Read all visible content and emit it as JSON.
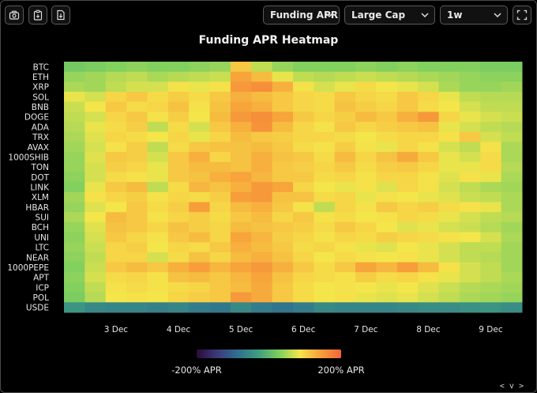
{
  "toolbar": {
    "screenshot_label": "camera-icon",
    "copy_label": "clipboard-icon",
    "export_label": "download-file-icon",
    "metric_select": "Funding APR",
    "group_select": "Large Cap",
    "range_select": "1w",
    "fullscreen_label": "expand-icon"
  },
  "nav_hint": "< v >",
  "colors": {
    "background": "#000000",
    "scale": [
      "#2d0b3a",
      "#3b3a7a",
      "#2f6f8f",
      "#3f9f7f",
      "#7fcf5f",
      "#f5e64a",
      "#f7a03a",
      "#f2653a"
    ]
  },
  "chart_data": {
    "type": "heatmap",
    "title": "Funding APR Heatmap",
    "y_categories": [
      "BTC",
      "ETH",
      "XRP",
      "SOL",
      "BNB",
      "DOGE",
      "ADA",
      "TRX",
      "AVAX",
      "1000SHIB",
      "TON",
      "DOT",
      "LINK",
      "XLM",
      "HBAR",
      "SUI",
      "BCH",
      "UNI",
      "LTC",
      "NEAR",
      "1000PEPE",
      "APT",
      "ICP",
      "POL",
      "USDE"
    ],
    "x_ticks": [
      "3 Dec",
      "4 Dec",
      "5 Dec",
      "6 Dec",
      "7 Dec",
      "8 Dec",
      "9 Dec"
    ],
    "x_tick_positions": [
      2.5,
      5.5,
      8.5,
      11.5,
      14.5,
      17.5,
      20.5
    ],
    "columns": 22,
    "color_scale": {
      "min": -200,
      "max": 200,
      "min_label": "-200% APR",
      "max_label": "200% APR"
    },
    "values": [
      [
        20,
        25,
        30,
        35,
        30,
        30,
        35,
        40,
        110,
        60,
        40,
        30,
        30,
        30,
        35,
        30,
        35,
        30,
        30,
        30,
        25,
        25
      ],
      [
        40,
        45,
        55,
        60,
        50,
        55,
        60,
        65,
        140,
        120,
        80,
        60,
        55,
        60,
        65,
        60,
        55,
        50,
        45,
        40,
        35,
        35
      ],
      [
        50,
        45,
        60,
        70,
        70,
        90,
        80,
        90,
        150,
        160,
        130,
        90,
        70,
        80,
        95,
        85,
        80,
        70,
        50,
        40,
        40,
        45
      ],
      [
        80,
        70,
        100,
        110,
        95,
        105,
        95,
        110,
        130,
        120,
        110,
        100,
        95,
        110,
        100,
        95,
        110,
        100,
        80,
        60,
        55,
        55
      ],
      [
        65,
        85,
        110,
        95,
        100,
        115,
        90,
        115,
        140,
        130,
        110,
        100,
        95,
        115,
        105,
        100,
        110,
        95,
        85,
        70,
        60,
        60
      ],
      [
        60,
        70,
        100,
        110,
        90,
        105,
        85,
        120,
        150,
        160,
        140,
        110,
        100,
        105,
        120,
        110,
        130,
        150,
        100,
        80,
        70,
        65
      ],
      [
        55,
        80,
        95,
        105,
        60,
        95,
        70,
        110,
        130,
        155,
        120,
        100,
        90,
        110,
        100,
        105,
        110,
        115,
        80,
        70,
        60,
        55
      ],
      [
        50,
        75,
        100,
        95,
        85,
        100,
        80,
        100,
        120,
        110,
        105,
        100,
        100,
        95,
        85,
        95,
        100,
        100,
        90,
        110,
        70,
        60
      ],
      [
        45,
        70,
        90,
        105,
        60,
        95,
        110,
        115,
        115,
        120,
        110,
        95,
        90,
        105,
        90,
        80,
        100,
        90,
        70,
        60,
        90,
        50
      ],
      [
        40,
        75,
        110,
        105,
        70,
        110,
        130,
        100,
        115,
        130,
        115,
        110,
        95,
        120,
        100,
        115,
        135,
        110,
        80,
        70,
        95,
        50
      ],
      [
        40,
        70,
        105,
        100,
        80,
        110,
        120,
        120,
        115,
        130,
        110,
        105,
        100,
        110,
        95,
        105,
        110,
        100,
        80,
        80,
        95,
        55
      ],
      [
        35,
        70,
        95,
        90,
        80,
        110,
        115,
        130,
        140,
        125,
        110,
        110,
        95,
        100,
        90,
        100,
        100,
        90,
        75,
        90,
        80,
        50
      ],
      [
        30,
        80,
        110,
        120,
        60,
        95,
        125,
        115,
        130,
        150,
        140,
        100,
        85,
        80,
        90,
        75,
        100,
        90,
        70,
        60,
        50,
        45
      ],
      [
        45,
        90,
        100,
        105,
        90,
        100,
        95,
        105,
        145,
        150,
        115,
        115,
        95,
        100,
        80,
        90,
        85,
        80,
        75,
        65,
        60,
        50
      ],
      [
        40,
        75,
        85,
        110,
        95,
        105,
        145,
        100,
        120,
        130,
        110,
        90,
        60,
        100,
        90,
        110,
        100,
        105,
        95,
        90,
        80,
        50
      ],
      [
        50,
        85,
        120,
        110,
        90,
        100,
        105,
        95,
        110,
        120,
        100,
        110,
        90,
        95,
        85,
        90,
        100,
        95,
        80,
        70,
        60,
        55
      ],
      [
        40,
        75,
        115,
        110,
        100,
        115,
        105,
        100,
        120,
        115,
        110,
        105,
        95,
        110,
        100,
        85,
        75,
        80,
        70,
        65,
        55,
        45
      ],
      [
        35,
        70,
        110,
        100,
        90,
        110,
        120,
        100,
        140,
        125,
        105,
        100,
        90,
        100,
        95,
        105,
        100,
        95,
        90,
        85,
        70,
        50
      ],
      [
        40,
        65,
        100,
        105,
        85,
        100,
        95,
        110,
        130,
        120,
        110,
        95,
        100,
        90,
        80,
        75,
        85,
        80,
        70,
        60,
        60,
        45
      ],
      [
        35,
        60,
        100,
        100,
        70,
        95,
        115,
        100,
        120,
        130,
        115,
        100,
        85,
        95,
        90,
        85,
        90,
        80,
        70,
        60,
        55,
        45
      ],
      [
        30,
        65,
        110,
        120,
        110,
        130,
        145,
        125,
        140,
        150,
        130,
        110,
        95,
        110,
        140,
        125,
        145,
        120,
        90,
        70,
        60,
        45
      ],
      [
        35,
        70,
        95,
        100,
        90,
        115,
        120,
        110,
        125,
        140,
        115,
        100,
        95,
        90,
        105,
        95,
        100,
        90,
        80,
        70,
        60,
        50
      ],
      [
        30,
        60,
        90,
        95,
        90,
        95,
        100,
        110,
        120,
        135,
        110,
        95,
        85,
        90,
        85,
        80,
        85,
        75,
        65,
        55,
        50,
        45
      ],
      [
        25,
        55,
        85,
        90,
        85,
        100,
        105,
        110,
        150,
        135,
        110,
        95,
        85,
        90,
        80,
        75,
        80,
        70,
        60,
        50,
        45,
        40
      ],
      [
        -40,
        -55,
        -60,
        -60,
        -65,
        -60,
        -70,
        -75,
        -55,
        -70,
        -80,
        -70,
        -55,
        -60,
        -60,
        -60,
        -55,
        -50,
        -50,
        -45,
        -40,
        -50
      ]
    ]
  }
}
